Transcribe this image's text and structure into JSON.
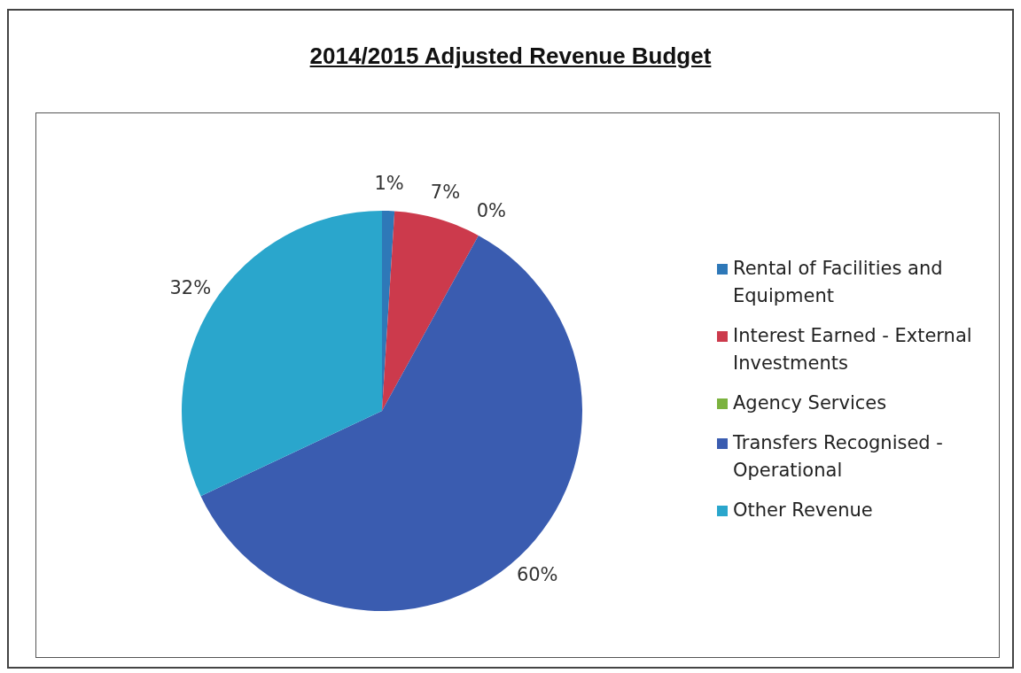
{
  "chart_data": {
    "type": "pie",
    "title": "2014/2015 Adjusted Revenue Budget",
    "categories": [
      "Rental of Facilities and Equipment",
      "Interest Earned - External Investments",
      "Agency Services",
      "Transfers Recognised - Operational",
      "Other Revenue"
    ],
    "values": [
      1,
      7,
      0,
      60,
      32
    ],
    "colors": [
      "#2e78b8",
      "#cc3a4c",
      "#7bb23e",
      "#3a5cb0",
      "#2aa6cc"
    ],
    "value_labels": [
      "1%",
      "7%",
      "0%",
      "60%",
      "32%"
    ],
    "legend": "right"
  }
}
